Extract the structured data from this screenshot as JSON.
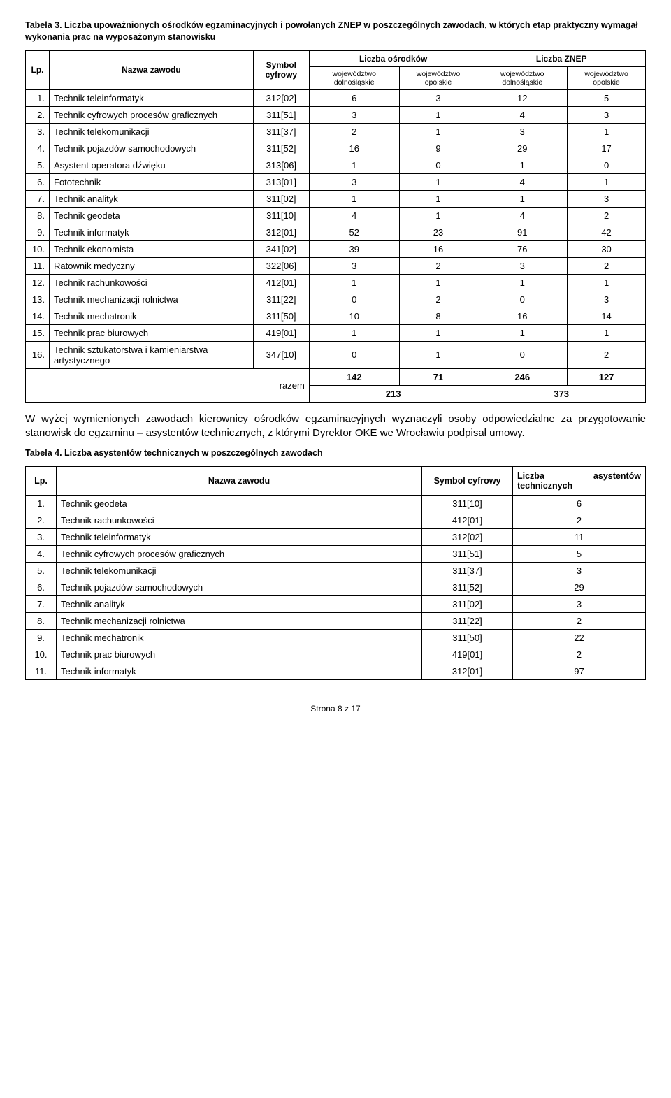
{
  "table3": {
    "caption": "Tabela 3. Liczba upoważnionych ośrodków egzaminacyjnych i powołanych ZNEP w poszczególnych zawodach, w których etap praktyczny wymagał wykonania prac na wyposażonym stanowisku",
    "headers": {
      "lp": "Lp.",
      "name": "Nazwa zawodu",
      "symbol": "Symbol cyfrowy",
      "osrodki": "Liczba ośrodków",
      "znep": "Liczba ZNEP",
      "woj_d": "województwo dolnośląskie",
      "woj_o": "województwo opolskie"
    },
    "rows": [
      {
        "lp": "1.",
        "name": "Technik teleinformatyk",
        "sym": "312[02]",
        "od": "6",
        "oo": "3",
        "zd": "12",
        "zo": "5"
      },
      {
        "lp": "2.",
        "name": "Technik cyfrowych procesów graficznych",
        "sym": "311[51]",
        "od": "3",
        "oo": "1",
        "zd": "4",
        "zo": "3"
      },
      {
        "lp": "3.",
        "name": "Technik telekomunikacji",
        "sym": "311[37]",
        "od": "2",
        "oo": "1",
        "zd": "3",
        "zo": "1"
      },
      {
        "lp": "4.",
        "name": "Technik pojazdów samochodowych",
        "sym": "311[52]",
        "od": "16",
        "oo": "9",
        "zd": "29",
        "zo": "17"
      },
      {
        "lp": "5.",
        "name": "Asystent operatora dźwięku",
        "sym": "313[06]",
        "od": "1",
        "oo": "0",
        "zd": "1",
        "zo": "0"
      },
      {
        "lp": "6.",
        "name": "Fototechnik",
        "sym": "313[01]",
        "od": "3",
        "oo": "1",
        "zd": "4",
        "zo": "1"
      },
      {
        "lp": "7.",
        "name": "Technik analityk",
        "sym": "311[02]",
        "od": "1",
        "oo": "1",
        "zd": "1",
        "zo": "3"
      },
      {
        "lp": "8.",
        "name": "Technik geodeta",
        "sym": "311[10]",
        "od": "4",
        "oo": "1",
        "zd": "4",
        "zo": "2"
      },
      {
        "lp": "9.",
        "name": "Technik informatyk",
        "sym": "312[01]",
        "od": "52",
        "oo": "23",
        "zd": "91",
        "zo": "42"
      },
      {
        "lp": "10.",
        "name": "Technik ekonomista",
        "sym": "341[02]",
        "od": "39",
        "oo": "16",
        "zd": "76",
        "zo": "30"
      },
      {
        "lp": "11.",
        "name": "Ratownik medyczny",
        "sym": "322[06]",
        "od": "3",
        "oo": "2",
        "zd": "3",
        "zo": "2"
      },
      {
        "lp": "12.",
        "name": "Technik rachunkowości",
        "sym": "412[01]",
        "od": "1",
        "oo": "1",
        "zd": "1",
        "zo": "1"
      },
      {
        "lp": "13.",
        "name": "Technik mechanizacji rolnictwa",
        "sym": "311[22]",
        "od": "0",
        "oo": "2",
        "zd": "0",
        "zo": "3"
      },
      {
        "lp": "14.",
        "name": "Technik mechatronik",
        "sym": "311[50]",
        "od": "10",
        "oo": "8",
        "zd": "16",
        "zo": "14"
      },
      {
        "lp": "15.",
        "name": "Technik prac biurowych",
        "sym": "419[01]",
        "od": "1",
        "oo": "1",
        "zd": "1",
        "zo": "1"
      },
      {
        "lp": "16.",
        "name": "Technik sztukatorstwa i kamieniarstwa artystycznego",
        "sym": "347[10]",
        "od": "0",
        "oo": "1",
        "zd": "0",
        "zo": "2"
      }
    ],
    "totals": {
      "label": "razem",
      "od": "142",
      "oo": "71",
      "zd": "246",
      "zo": "127",
      "osrodki_sum": "213",
      "znep_sum": "373"
    }
  },
  "paragraph": "W wyżej wymienionych zawodach kierownicy ośrodków egzaminacyjnych wyznaczyli osoby odpowiedzialne za przygotowanie stanowisk do egzaminu – asystentów technicznych, z którymi Dyrektor OKE we Wrocławiu podpisał umowy.",
  "table4": {
    "caption": "Tabela 4. Liczba asystentów technicznych w poszczególnych zawodach",
    "headers": {
      "lp": "Lp.",
      "name": "Nazwa zawodu",
      "symbol": "Symbol cyfrowy",
      "count": "Liczba asystentów technicznych"
    },
    "rows": [
      {
        "lp": "1.",
        "name": "Technik geodeta",
        "sym": "311[10]",
        "cnt": "6"
      },
      {
        "lp": "2.",
        "name": "Technik rachunkowości",
        "sym": "412[01]",
        "cnt": "2"
      },
      {
        "lp": "3.",
        "name": "Technik teleinformatyk",
        "sym": "312[02]",
        "cnt": "11"
      },
      {
        "lp": "4.",
        "name": "Technik cyfrowych procesów graficznych",
        "sym": "311[51]",
        "cnt": "5"
      },
      {
        "lp": "5.",
        "name": "Technik telekomunikacji",
        "sym": "311[37]",
        "cnt": "3"
      },
      {
        "lp": "6.",
        "name": "Technik pojazdów samochodowych",
        "sym": "311[52]",
        "cnt": "29"
      },
      {
        "lp": "7.",
        "name": "Technik analityk",
        "sym": "311[02]",
        "cnt": "3"
      },
      {
        "lp": "8.",
        "name": "Technik mechanizacji rolnictwa",
        "sym": "311[22]",
        "cnt": "2"
      },
      {
        "lp": "9.",
        "name": "Technik mechatronik",
        "sym": "311[50]",
        "cnt": "22"
      },
      {
        "lp": "10.",
        "name": "Technik prac biurowych",
        "sym": "419[01]",
        "cnt": "2"
      },
      {
        "lp": "11.",
        "name": "Technik informatyk",
        "sym": "312[01]",
        "cnt": "97"
      }
    ]
  },
  "footer": "Strona 8 z 17"
}
